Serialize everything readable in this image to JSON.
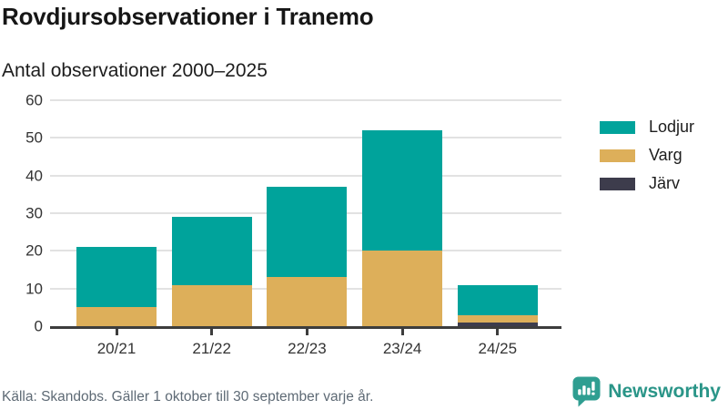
{
  "header": {
    "title": "Rovdjursobservationer i Tranemo",
    "subtitle": "Antal observationer 2000–2025"
  },
  "chart_data": {
    "type": "bar",
    "stacked": true,
    "title": "Rovdjursobservationer i Tranemo",
    "subtitle": "Antal observationer 2000–2025",
    "categories": [
      "20/21",
      "21/22",
      "22/23",
      "23/24",
      "24/25"
    ],
    "series": [
      {
        "id": "lodjur",
        "name": "Lodjur",
        "color": "#00a39b",
        "values": [
          16,
          18,
          24,
          32,
          8
        ]
      },
      {
        "id": "varg",
        "name": "Varg",
        "color": "#ddaf5a",
        "values": [
          5,
          11,
          13,
          20,
          2
        ]
      },
      {
        "id": "jarv",
        "name": "Järv",
        "color": "#3d3c4c",
        "values": [
          0,
          0,
          0,
          0,
          1
        ]
      }
    ],
    "stack_order_bottom_to_top": [
      "Järv",
      "Varg",
      "Lodjur"
    ],
    "stacked_totals": [
      21,
      29,
      37,
      52,
      11
    ],
    "xlabel": "",
    "ylabel": "",
    "ylim": [
      0,
      60
    ],
    "yticks": [
      0,
      10,
      20,
      30,
      40,
      50,
      60
    ],
    "grid": true,
    "legend_position": "right"
  },
  "footer": {
    "source": "Källa: Skandobs. Gäller 1 oktober till 30 september varje år.",
    "brand": "Newsworthy",
    "brand_icon": "bar-chart-speech-bubble",
    "brand_color": "#2a9588"
  },
  "colors": {
    "lodjur": "#00a39b",
    "varg": "#ddaf5a",
    "jarv": "#3d3c4c",
    "gridline": "#e2e2e2",
    "axis": "#3d3d3d",
    "text": "#1d1d1d",
    "muted_text": "#5e6a75"
  }
}
